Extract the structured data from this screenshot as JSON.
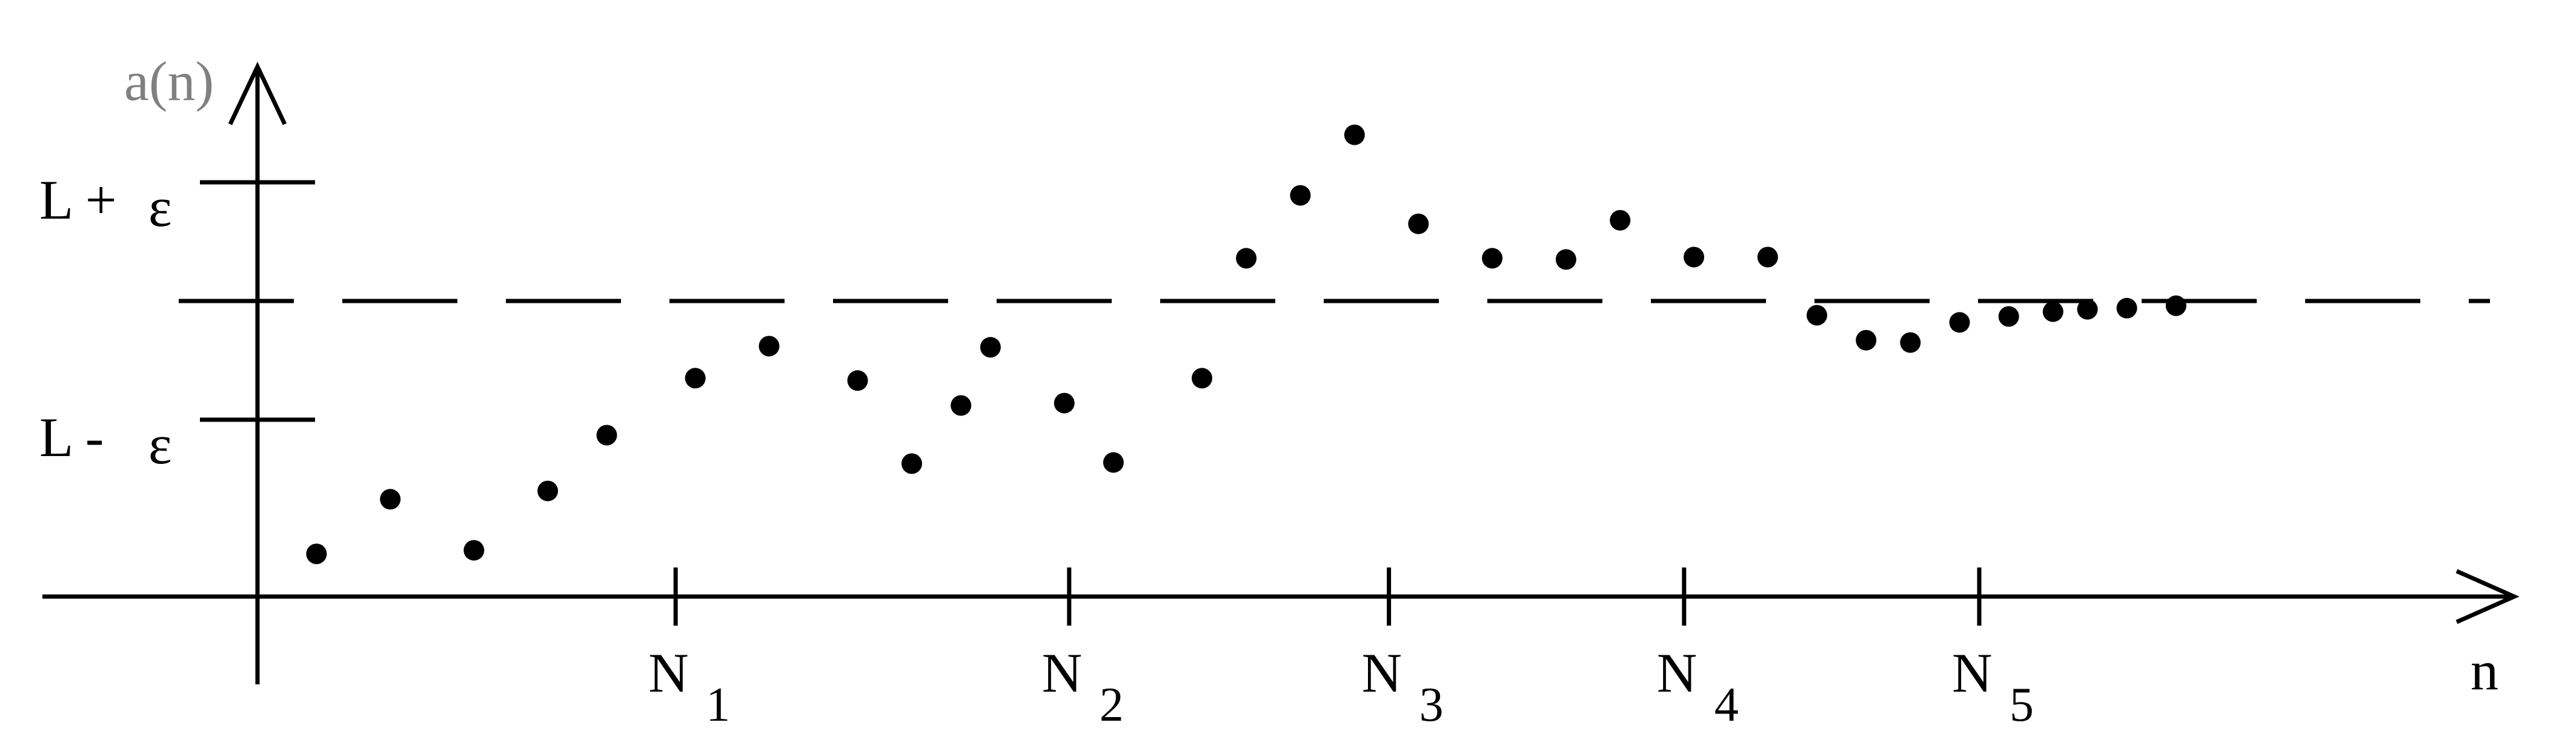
{
  "chart_data": {
    "type": "scatter",
    "title": "",
    "xlabel": "n",
    "ylabel": "a(n)",
    "limit_line": {
      "style": "dashed",
      "value": 0
    },
    "y_ticks": [
      {
        "value": 1,
        "label_main": "L +",
        "label_sym": "ε"
      },
      {
        "value": -1,
        "label_main": "L -",
        "label_sym": "ε"
      }
    ],
    "x_ticks": [
      {
        "value": 8.5,
        "label_main": "N",
        "label_sub": "1"
      },
      {
        "value": 16.5,
        "label_main": "N",
        "label_sub": "2"
      },
      {
        "value": 23,
        "label_main": "N",
        "label_sub": "3"
      },
      {
        "value": 29,
        "label_main": "N",
        "label_sub": "4"
      },
      {
        "value": 35,
        "label_main": "N",
        "label_sub": "5"
      }
    ],
    "xlim": [
      0,
      42
    ],
    "ylim": [
      -2.5,
      2.0
    ],
    "points": [
      {
        "x": 1.2,
        "y": -2.13
      },
      {
        "x": 2.7,
        "y": -1.67
      },
      {
        "x": 4.4,
        "y": -2.1
      },
      {
        "x": 5.9,
        "y": -1.6
      },
      {
        "x": 7.1,
        "y": -1.13
      },
      {
        "x": 8.9,
        "y": -0.65
      },
      {
        "x": 10.4,
        "y": -0.38
      },
      {
        "x": 12.2,
        "y": -0.67
      },
      {
        "x": 13.3,
        "y": -1.37
      },
      {
        "x": 14.3,
        "y": -0.88
      },
      {
        "x": 14.9,
        "y": -0.39
      },
      {
        "x": 16.4,
        "y": -0.86
      },
      {
        "x": 17.4,
        "y": -1.36
      },
      {
        "x": 19.2,
        "y": -0.65
      },
      {
        "x": 20.1,
        "y": 0.36
      },
      {
        "x": 21.2,
        "y": 0.89
      },
      {
        "x": 22.3,
        "y": 1.4
      },
      {
        "x": 23.6,
        "y": 0.65
      },
      {
        "x": 25.1,
        "y": 0.36
      },
      {
        "x": 26.6,
        "y": 0.35
      },
      {
        "x": 27.7,
        "y": 0.68
      },
      {
        "x": 29.2,
        "y": 0.37
      },
      {
        "x": 30.7,
        "y": 0.37
      },
      {
        "x": 31.7,
        "y": -0.12
      },
      {
        "x": 32.7,
        "y": -0.33
      },
      {
        "x": 33.6,
        "y": -0.35
      },
      {
        "x": 34.6,
        "y": -0.18
      },
      {
        "x": 35.6,
        "y": -0.13
      },
      {
        "x": 36.5,
        "y": -0.09
      },
      {
        "x": 37.2,
        "y": -0.07
      },
      {
        "x": 38.0,
        "y": -0.06
      },
      {
        "x": 39.0,
        "y": -0.04
      }
    ]
  }
}
